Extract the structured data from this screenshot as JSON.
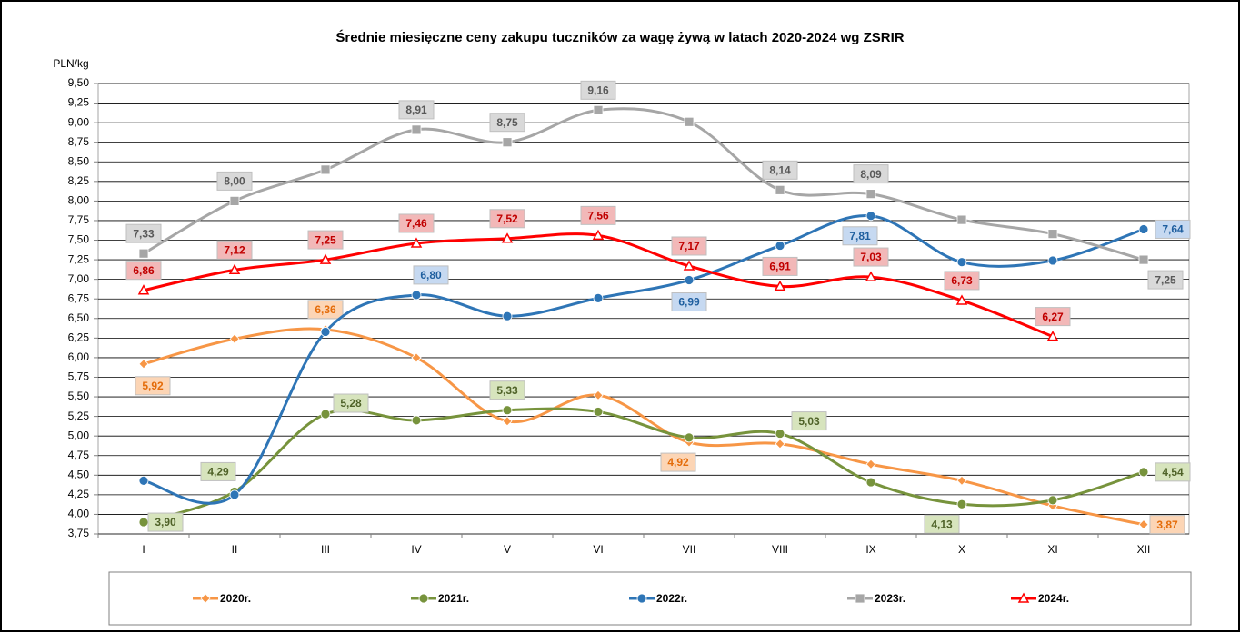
{
  "chart_data": {
    "type": "line",
    "title": "Średnie miesięczne ceny zakupu tuczników za wagę żywą w latach 2020-2024 wg ZSRIR",
    "y_label": "PLN/kg",
    "categories": [
      "I",
      "II",
      "III",
      "IV",
      "V",
      "VI",
      "VII",
      "VIII",
      "IX",
      "X",
      "XI",
      "XII"
    ],
    "ylim": [
      3.75,
      9.5
    ],
    "yticks": [
      {
        "value": 3.75,
        "label": "3,75"
      },
      {
        "value": 4,
        "label": "4,00"
      },
      {
        "value": 4.25,
        "label": "4,25"
      },
      {
        "value": 4.5,
        "label": "4,50"
      },
      {
        "value": 4.75,
        "label": "4,75"
      },
      {
        "value": 5,
        "label": "5,00"
      },
      {
        "value": 5.25,
        "label": "5,25"
      },
      {
        "value": 5.5,
        "label": "5,50"
      },
      {
        "value": 5.75,
        "label": "5,75"
      },
      {
        "value": 6,
        "label": "6,00"
      },
      {
        "value": 6.25,
        "label": "6,25"
      },
      {
        "value": 6.5,
        "label": "6,50"
      },
      {
        "value": 6.75,
        "label": "6,75"
      },
      {
        "value": 7,
        "label": "7,00"
      },
      {
        "value": 7.25,
        "label": "7,25"
      },
      {
        "value": 7.5,
        "label": "7,50"
      },
      {
        "value": 7.75,
        "label": "7,75"
      },
      {
        "value": 8,
        "label": "8,00"
      },
      {
        "value": 8.25,
        "label": "8,25"
      },
      {
        "value": 8.5,
        "label": "8,50"
      },
      {
        "value": 8.75,
        "label": "8,75"
      },
      {
        "value": 9,
        "label": "9,00"
      },
      {
        "value": 9.25,
        "label": "9,25"
      },
      {
        "value": 9.5,
        "label": "9,50"
      }
    ],
    "grid": true,
    "legend": "bottom",
    "series": [
      {
        "name": "2020r.",
        "color": "#f79646",
        "marker": "diamond",
        "values": [
          5.92,
          6.24,
          6.36,
          6.0,
          5.19,
          5.52,
          4.92,
          4.9,
          4.64,
          4.43,
          4.11,
          3.87
        ],
        "value_labels": [
          "5,92",
          null,
          "6,36",
          null,
          null,
          null,
          "4,92",
          null,
          null,
          null,
          null,
          "3,87"
        ]
      },
      {
        "name": "2021r.",
        "color": "#77933c",
        "marker": "circle",
        "values": [
          3.9,
          4.29,
          5.28,
          5.2,
          5.33,
          5.31,
          4.98,
          5.03,
          4.41,
          4.13,
          4.18,
          4.54
        ],
        "value_labels": [
          "3,90",
          "4,29",
          "5,28",
          null,
          "5,33",
          null,
          null,
          "5,03",
          null,
          "4,13",
          null,
          "4,54"
        ]
      },
      {
        "name": "2022r.",
        "color": "#2e75b6",
        "marker": "circle",
        "values": [
          4.43,
          4.25,
          6.33,
          6.8,
          6.53,
          6.76,
          6.99,
          7.43,
          7.81,
          7.22,
          7.24,
          7.64
        ],
        "value_labels": [
          null,
          null,
          null,
          "6,80",
          null,
          null,
          "6,99",
          null,
          "7,81",
          null,
          null,
          "7,64"
        ]
      },
      {
        "name": "2023r.",
        "color": "#a6a6a6",
        "marker": "square",
        "values": [
          7.33,
          8.0,
          8.4,
          8.91,
          8.75,
          9.16,
          9.01,
          8.14,
          8.09,
          7.76,
          7.58,
          7.25
        ],
        "value_labels": [
          "7,33",
          "8,00",
          null,
          "8,91",
          "8,75",
          "9,16",
          null,
          "8,14",
          "8,09",
          null,
          null,
          "7,25"
        ]
      },
      {
        "name": "2024r.",
        "color": "#ff0000",
        "marker": "triangle",
        "values": [
          6.86,
          7.12,
          7.25,
          7.46,
          7.52,
          7.56,
          7.17,
          6.91,
          7.03,
          6.73,
          6.27,
          null
        ],
        "value_labels": [
          "6,86",
          "7,12",
          "7,25",
          "7,46",
          "7,52",
          "7,56",
          "7,17",
          "6,91",
          "7,03",
          "6,73",
          "6,27",
          null
        ]
      }
    ]
  }
}
